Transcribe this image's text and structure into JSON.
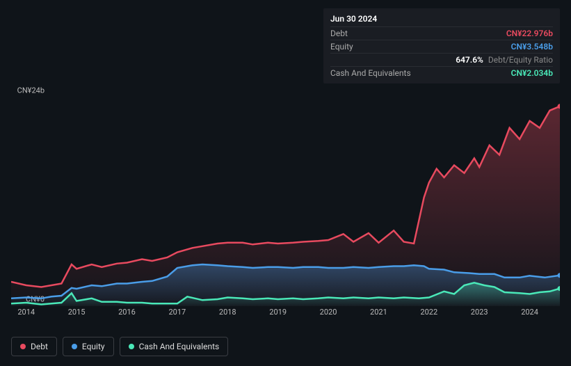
{
  "tooltip": {
    "date": "Jun 30 2024",
    "rows": [
      {
        "label": "Debt",
        "value": "CN¥22.976b",
        "cls": "debt"
      },
      {
        "label": "Equity",
        "value": "CN¥3.548b",
        "cls": "equity"
      },
      {
        "label": "",
        "value": "647.6%",
        "suffix": "Debt/Equity Ratio",
        "cls": "ratio"
      },
      {
        "label": "Cash And Equivalents",
        "value": "CN¥2.034b",
        "cls": "cash"
      }
    ]
  },
  "chart": {
    "type": "area",
    "background_color": "#0f1419",
    "colors": {
      "debt": "#e84a5f",
      "equity": "#4a9de8",
      "cash": "#4ae8b8",
      "grid": "#2a2d33",
      "text": "#bbbbbb"
    },
    "line_width": 2.5,
    "font_size_axis": 11,
    "font_size_legend": 12,
    "ylim": [
      0,
      24
    ],
    "y_ticks": [
      {
        "v": 24,
        "label": "CN¥24b"
      },
      {
        "v": 0,
        "label": "CN¥0"
      }
    ],
    "x_range": [
      2013.7,
      2024.6
    ],
    "x_ticks": [
      2014,
      2015,
      2016,
      2017,
      2018,
      2019,
      2020,
      2021,
      2022,
      2023,
      2024
    ],
    "series": {
      "debt": [
        [
          2013.7,
          2.8
        ],
        [
          2014.0,
          2.4
        ],
        [
          2014.3,
          2.2
        ],
        [
          2014.5,
          2.4
        ],
        [
          2014.7,
          2.6
        ],
        [
          2014.9,
          4.8
        ],
        [
          2015.0,
          4.3
        ],
        [
          2015.3,
          4.8
        ],
        [
          2015.5,
          4.5
        ],
        [
          2015.8,
          4.9
        ],
        [
          2016.0,
          5.0
        ],
        [
          2016.3,
          5.4
        ],
        [
          2016.5,
          5.2
        ],
        [
          2016.8,
          5.6
        ],
        [
          2017.0,
          6.2
        ],
        [
          2017.3,
          6.7
        ],
        [
          2017.5,
          6.9
        ],
        [
          2017.8,
          7.2
        ],
        [
          2018.0,
          7.3
        ],
        [
          2018.3,
          7.3
        ],
        [
          2018.5,
          7.1
        ],
        [
          2018.8,
          7.3
        ],
        [
          2019.0,
          7.2
        ],
        [
          2019.3,
          7.3
        ],
        [
          2019.5,
          7.4
        ],
        [
          2019.8,
          7.5
        ],
        [
          2020.0,
          7.6
        ],
        [
          2020.3,
          8.3
        ],
        [
          2020.5,
          7.4
        ],
        [
          2020.8,
          8.4
        ],
        [
          2021.0,
          7.3
        ],
        [
          2021.3,
          8.7
        ],
        [
          2021.5,
          7.4
        ],
        [
          2021.7,
          7.2
        ],
        [
          2021.9,
          12.5
        ],
        [
          2022.0,
          14.2
        ],
        [
          2022.15,
          15.8
        ],
        [
          2022.3,
          14.8
        ],
        [
          2022.5,
          16.2
        ],
        [
          2022.7,
          15.3
        ],
        [
          2022.9,
          17.0
        ],
        [
          2023.0,
          16.0
        ],
        [
          2023.2,
          18.5
        ],
        [
          2023.4,
          17.4
        ],
        [
          2023.6,
          20.5
        ],
        [
          2023.8,
          19.2
        ],
        [
          2024.0,
          21.3
        ],
        [
          2024.2,
          20.5
        ],
        [
          2024.4,
          22.5
        ],
        [
          2024.6,
          22.976
        ]
      ],
      "equity": [
        [
          2013.7,
          0.9
        ],
        [
          2014.0,
          1.0
        ],
        [
          2014.3,
          0.9
        ],
        [
          2014.5,
          1.1
        ],
        [
          2014.7,
          1.2
        ],
        [
          2014.9,
          2.1
        ],
        [
          2015.0,
          2.0
        ],
        [
          2015.3,
          2.4
        ],
        [
          2015.5,
          2.3
        ],
        [
          2015.8,
          2.6
        ],
        [
          2016.0,
          2.6
        ],
        [
          2016.3,
          2.8
        ],
        [
          2016.5,
          2.9
        ],
        [
          2016.8,
          3.4
        ],
        [
          2017.0,
          4.4
        ],
        [
          2017.3,
          4.7
        ],
        [
          2017.5,
          4.8
        ],
        [
          2017.8,
          4.7
        ],
        [
          2018.0,
          4.6
        ],
        [
          2018.3,
          4.5
        ],
        [
          2018.5,
          4.4
        ],
        [
          2018.8,
          4.5
        ],
        [
          2019.0,
          4.5
        ],
        [
          2019.3,
          4.4
        ],
        [
          2019.5,
          4.5
        ],
        [
          2019.8,
          4.5
        ],
        [
          2020.0,
          4.4
        ],
        [
          2020.3,
          4.4
        ],
        [
          2020.5,
          4.5
        ],
        [
          2020.8,
          4.4
        ],
        [
          2021.0,
          4.5
        ],
        [
          2021.3,
          4.6
        ],
        [
          2021.5,
          4.6
        ],
        [
          2021.7,
          4.7
        ],
        [
          2021.9,
          4.6
        ],
        [
          2022.0,
          4.3
        ],
        [
          2022.3,
          4.2
        ],
        [
          2022.5,
          3.9
        ],
        [
          2022.8,
          3.8
        ],
        [
          2023.0,
          3.7
        ],
        [
          2023.3,
          3.7
        ],
        [
          2023.5,
          3.3
        ],
        [
          2023.8,
          3.3
        ],
        [
          2024.0,
          3.5
        ],
        [
          2024.3,
          3.3
        ],
        [
          2024.6,
          3.548
        ]
      ],
      "cash": [
        [
          2013.7,
          0.3
        ],
        [
          2014.0,
          0.4
        ],
        [
          2014.3,
          0.2
        ],
        [
          2014.5,
          0.3
        ],
        [
          2014.7,
          0.4
        ],
        [
          2014.9,
          1.5
        ],
        [
          2015.0,
          0.6
        ],
        [
          2015.3,
          0.9
        ],
        [
          2015.5,
          0.5
        ],
        [
          2015.8,
          0.5
        ],
        [
          2016.0,
          0.4
        ],
        [
          2016.3,
          0.4
        ],
        [
          2016.5,
          0.3
        ],
        [
          2016.8,
          0.3
        ],
        [
          2017.0,
          0.3
        ],
        [
          2017.2,
          1.1
        ],
        [
          2017.5,
          0.7
        ],
        [
          2017.8,
          0.8
        ],
        [
          2018.0,
          1.0
        ],
        [
          2018.3,
          0.9
        ],
        [
          2018.5,
          0.8
        ],
        [
          2018.8,
          0.9
        ],
        [
          2019.0,
          0.8
        ],
        [
          2019.3,
          0.9
        ],
        [
          2019.5,
          0.8
        ],
        [
          2019.8,
          0.9
        ],
        [
          2020.0,
          1.0
        ],
        [
          2020.3,
          0.9
        ],
        [
          2020.5,
          1.0
        ],
        [
          2020.8,
          0.9
        ],
        [
          2021.0,
          1.0
        ],
        [
          2021.3,
          0.9
        ],
        [
          2021.5,
          1.0
        ],
        [
          2021.8,
          0.9
        ],
        [
          2022.0,
          1.0
        ],
        [
          2022.3,
          1.7
        ],
        [
          2022.5,
          1.4
        ],
        [
          2022.7,
          2.4
        ],
        [
          2022.9,
          2.7
        ],
        [
          2023.1,
          2.4
        ],
        [
          2023.3,
          2.2
        ],
        [
          2023.5,
          1.6
        ],
        [
          2023.8,
          1.5
        ],
        [
          2024.0,
          1.4
        ],
        [
          2024.2,
          1.6
        ],
        [
          2024.4,
          1.7
        ],
        [
          2024.6,
          2.034
        ]
      ]
    }
  },
  "legend": [
    {
      "label": "Debt",
      "cls": "debt"
    },
    {
      "label": "Equity",
      "cls": "equity"
    },
    {
      "label": "Cash And Equivalents",
      "cls": "cash"
    }
  ]
}
